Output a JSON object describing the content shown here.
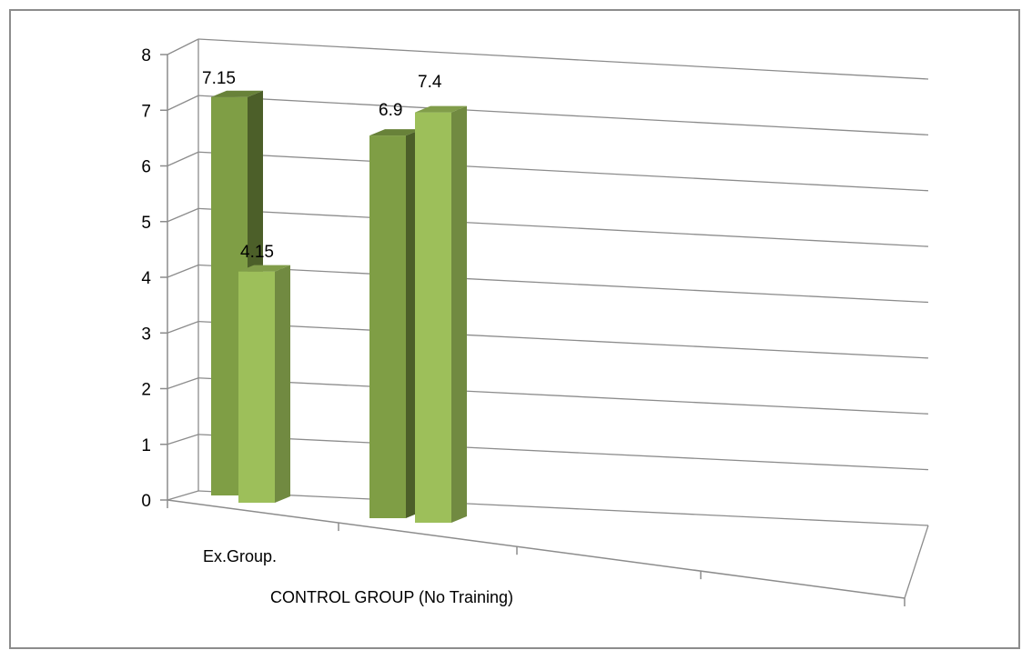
{
  "chart_data": {
    "type": "bar",
    "title": "",
    "xlabel": "",
    "ylabel": "",
    "ylim": [
      0,
      8
    ],
    "yticks": [
      0,
      1,
      2,
      3,
      4,
      5,
      6,
      7,
      8
    ],
    "grid": true,
    "legend": "none",
    "style": "3d-clustered-column",
    "categories": [
      "Ex.Group.",
      "CONTROL GROUP (No Training)"
    ],
    "series": [
      {
        "values": [
          7.15,
          6.9
        ],
        "color": "#7f9e45"
      },
      {
        "values": [
          4.15,
          7.4
        ],
        "color": "#9dbf5a"
      }
    ],
    "data_labels": [
      [
        "7.15",
        "6.9"
      ],
      [
        "4.15",
        "7.4"
      ]
    ]
  }
}
